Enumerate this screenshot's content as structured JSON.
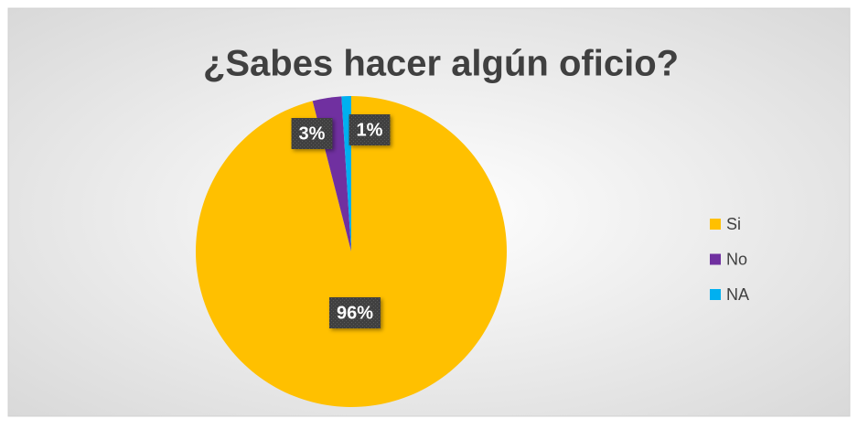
{
  "chart_data": {
    "type": "pie",
    "title": "¿Sabes hacer algún oficio?",
    "categories": [
      "Si",
      "No",
      "NA"
    ],
    "values": [
      96,
      3,
      1
    ],
    "value_labels": [
      "96%",
      "3%",
      "1%"
    ],
    "colors": [
      "#ffc000",
      "#7030a0",
      "#00b0f0"
    ],
    "legend": "right"
  }
}
